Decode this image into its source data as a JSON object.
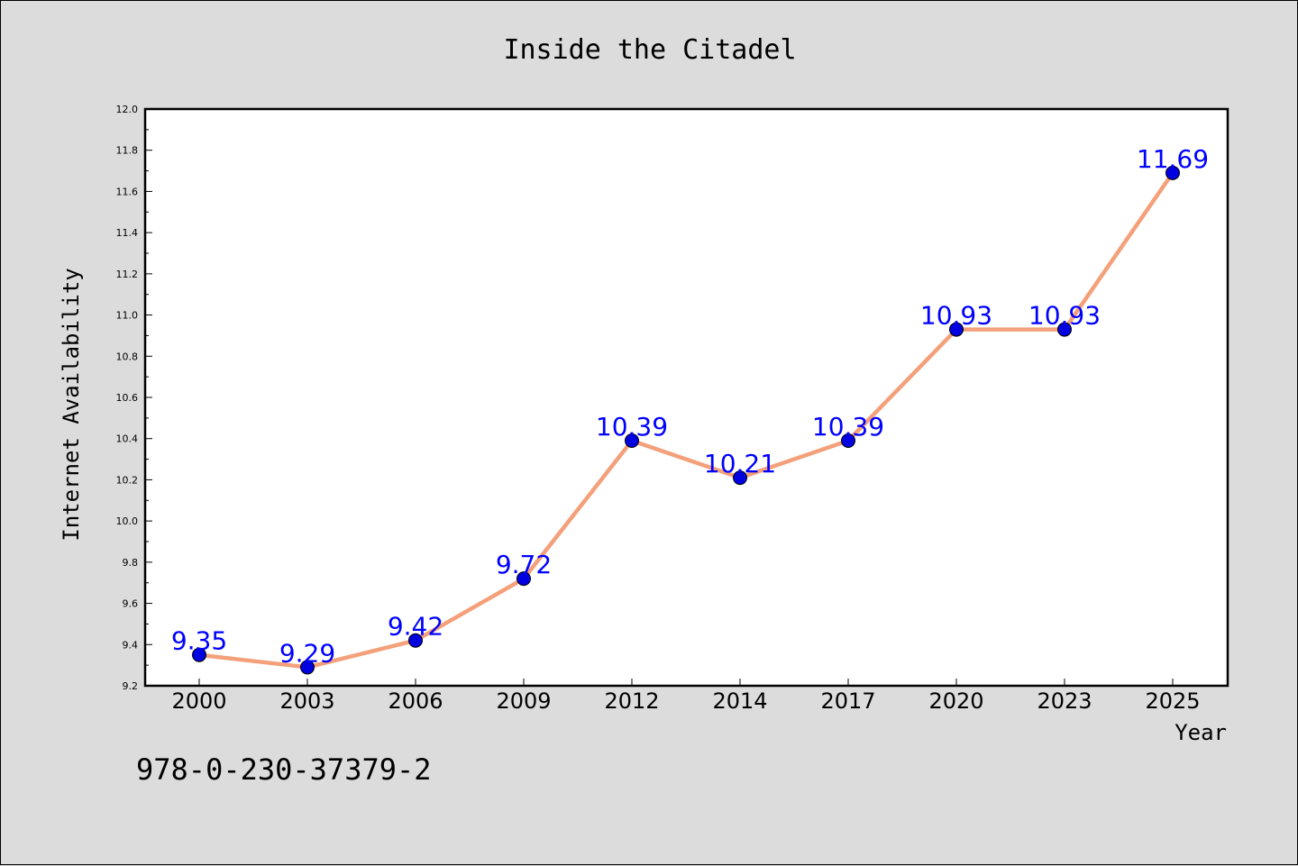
{
  "chart_data": {
    "type": "line",
    "title": "Inside the Citadel",
    "xlabel": "Year",
    "ylabel": "Internet Availability",
    "categories": [
      "2000",
      "2003",
      "2006",
      "2009",
      "2012",
      "2014",
      "2017",
      "2020",
      "2023",
      "2025"
    ],
    "series": [
      {
        "values": [
          9.35,
          9.29,
          9.42,
          9.72,
          10.39,
          10.21,
          10.39,
          10.93,
          10.93,
          11.69
        ],
        "labels": [
          "9.35",
          "9.29",
          "9.42",
          "9.72",
          "10.39",
          "10.21",
          "10.39",
          "10.93",
          "10.93",
          "11.69"
        ],
        "line_color": "#f4a07a",
        "marker_color": "#0000e0"
      }
    ],
    "ylim": [
      9.2,
      12.0
    ],
    "yticks": [
      "9.2",
      "9.4",
      "9.6",
      "9.8",
      "10.0",
      "10.2",
      "10.4",
      "10.6",
      "10.8",
      "11.0",
      "11.2",
      "11.4",
      "11.6",
      "11.8",
      "12.0"
    ],
    "grid": false,
    "legend": "none"
  },
  "footer": {
    "isbn": "978-0-230-37379-2"
  },
  "colors": {
    "background": "#dcdcdc",
    "plot_background": "#ffffff",
    "data_label": "#0000ff"
  }
}
